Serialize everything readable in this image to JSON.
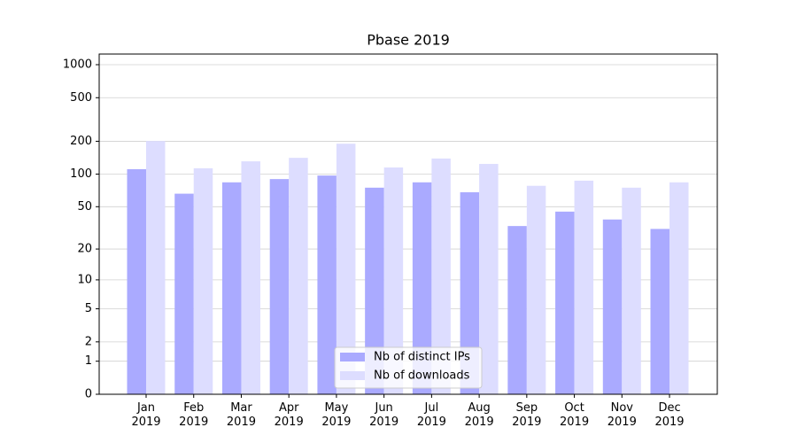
{
  "chart_data": {
    "type": "bar",
    "title": "Pbase 2019",
    "categories": [
      "Jan\n2019",
      "Feb\n2019",
      "Mar\n2019",
      "Apr\n2019",
      "May\n2019",
      "Jun\n2019",
      "Jul\n2019",
      "Aug\n2019",
      "Sep\n2019",
      "Oct\n2019",
      "Nov\n2019",
      "Dec\n2019"
    ],
    "series": [
      {
        "name": "Nb of distinct IPs",
        "color": "#aaaaff",
        "values": [
          111,
          66,
          84,
          90,
          97,
          75,
          84,
          68,
          33,
          45,
          38,
          31
        ]
      },
      {
        "name": "Nb of downloads",
        "color": "#ddddff",
        "values": [
          201,
          113,
          131,
          141,
          190,
          115,
          139,
          124,
          78,
          87,
          75,
          84
        ]
      }
    ],
    "yscale": "log1p",
    "ylim": [
      0,
      1250
    ],
    "yticks": [
      0,
      1,
      2,
      5,
      10,
      20,
      50,
      100,
      200,
      500,
      1000
    ],
    "grid": true,
    "legend": "lower center"
  }
}
